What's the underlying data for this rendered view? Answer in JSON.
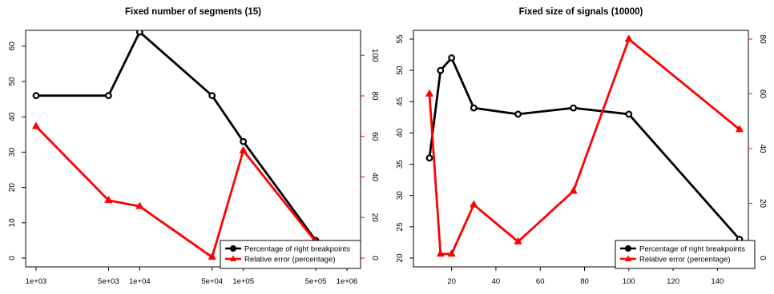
{
  "chart_data": [
    {
      "type": "line",
      "title": "Fixed number of segments (15)",
      "x_scale": "log",
      "xlim": [
        1000,
        1000000
      ],
      "x_ticks": [
        1000,
        5000,
        10000,
        50000,
        100000,
        500000,
        1000000
      ],
      "x_tick_labels": [
        "1e+03",
        "5e+03",
        "1e+04",
        "5e+04",
        "1e+05",
        "5e+05",
        "1e+06"
      ],
      "y_left": {
        "lim": [
          0,
          62
        ],
        "ticks": [
          0,
          10,
          20,
          30,
          40,
          50,
          60
        ],
        "color": "#000000"
      },
      "y_right": {
        "lim": [
          0,
          108
        ],
        "ticks": [
          0,
          20,
          40,
          60,
          80,
          100
        ],
        "color": "#ff0000"
      },
      "series": [
        {
          "name": "Percentage of right breakpoints",
          "axis": "left",
          "color": "#000000",
          "marker": "circle",
          "x": [
            1000,
            5000,
            10000,
            50000,
            100000,
            500000
          ],
          "y": [
            46,
            46,
            64,
            46,
            33,
            5
          ]
        },
        {
          "name": "Relative error (percentage)",
          "axis": "right",
          "color": "#ff0000",
          "marker": "triangle",
          "x": [
            1000,
            5000,
            10000,
            50000,
            100000,
            500000
          ],
          "y": [
            65,
            28.5,
            25.5,
            0.5,
            53,
            8
          ]
        }
      ],
      "legend": "bottom-right"
    },
    {
      "type": "line",
      "title": "Fixed size of signals (10000)",
      "x_scale": "linear",
      "xlim": [
        10,
        150
      ],
      "x_ticks": [
        20,
        40,
        60,
        80,
        100,
        120,
        140
      ],
      "x_tick_labels": [
        "20",
        "40",
        "60",
        "80",
        "100",
        "120",
        "140"
      ],
      "y_left": {
        "lim": [
          20,
          55
        ],
        "ticks": [
          20,
          25,
          30,
          35,
          40,
          45,
          50,
          55
        ],
        "color": "#000000"
      },
      "y_right": {
        "lim": [
          0,
          80
        ],
        "ticks": [
          0,
          20,
          40,
          60,
          80
        ],
        "color": "#ff0000"
      },
      "series": [
        {
          "name": "Percentage of right breakpoints",
          "axis": "left",
          "color": "#000000",
          "marker": "circle",
          "x": [
            10,
            15,
            20,
            30,
            50,
            75,
            100,
            150
          ],
          "y": [
            36,
            50,
            52,
            44,
            43,
            44,
            43,
            23
          ]
        },
        {
          "name": "Relative error (percentage)",
          "axis": "right",
          "color": "#ff0000",
          "marker": "triangle",
          "x": [
            10,
            15,
            20,
            30,
            50,
            75,
            100,
            150
          ],
          "y": [
            60,
            1.5,
            1.5,
            19.5,
            6,
            24.5,
            80,
            47
          ]
        }
      ],
      "legend": "bottom-right"
    }
  ]
}
